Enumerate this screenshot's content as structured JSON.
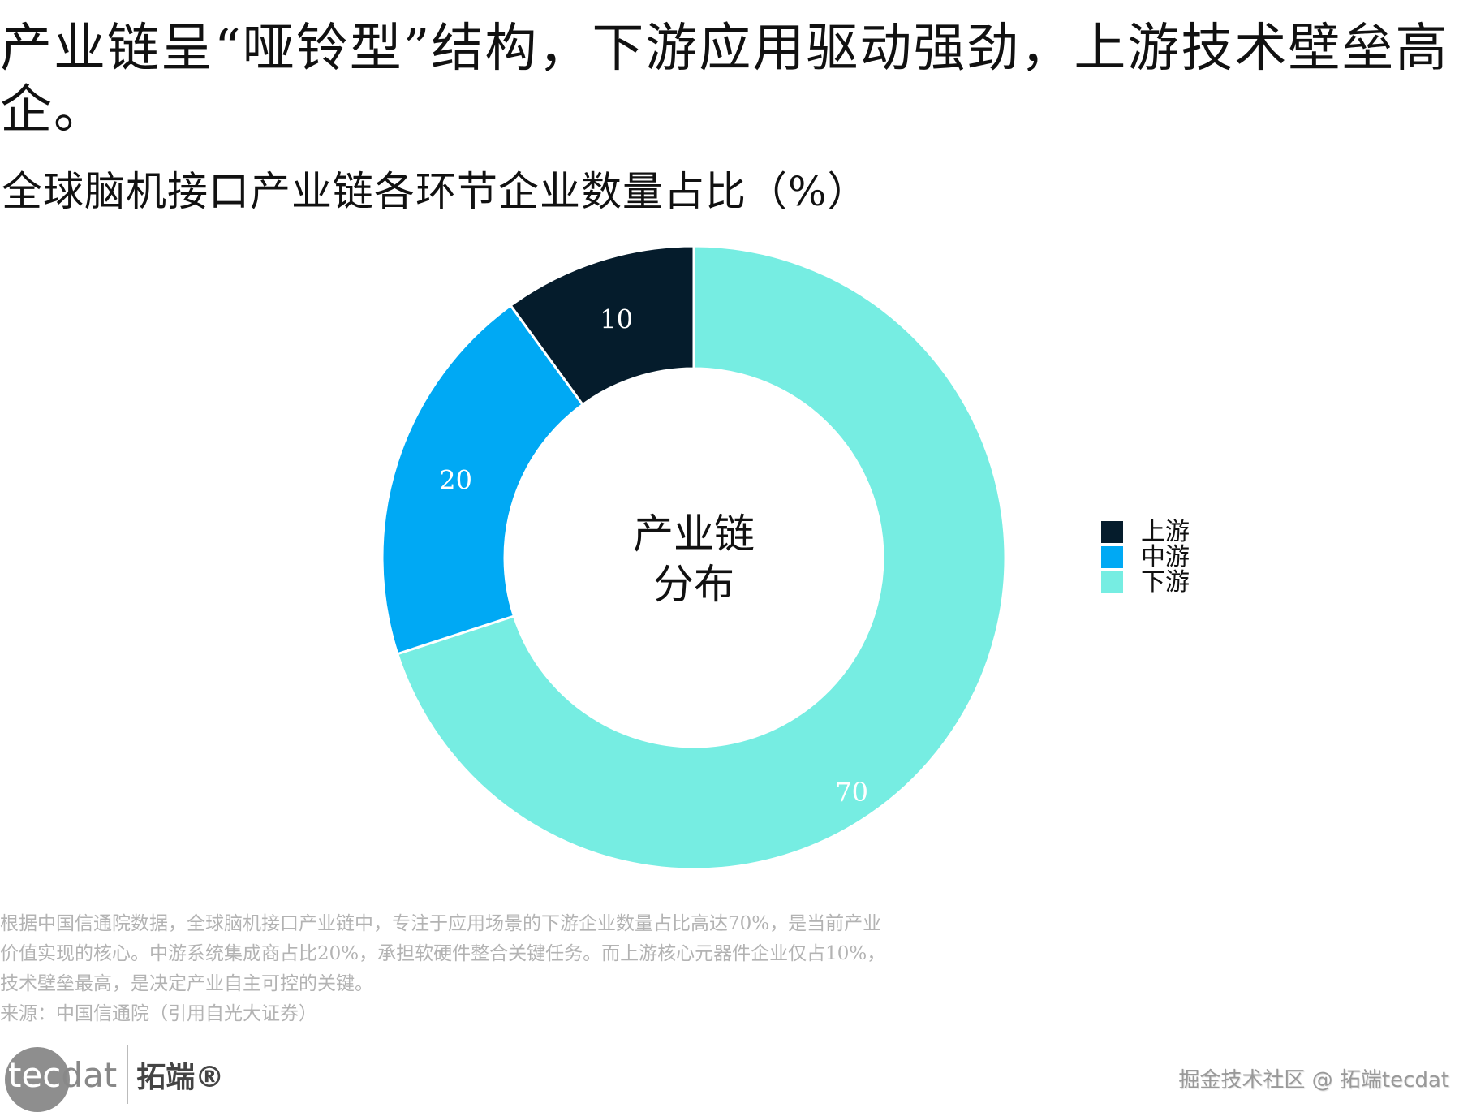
{
  "title": "产业链呈“哑铃型”结构，下游应用驱动强劲，上游技术壁垒高企。",
  "subtitle": "全球脑机接口产业链各环节企业数量占比（%）",
  "chart_data": {
    "type": "pie",
    "variant": "donut",
    "title": "全球脑机接口产业链各环节企业数量占比（%）",
    "center_label": [
      "产业链",
      "分布"
    ],
    "categories": [
      "上游",
      "中游",
      "下游"
    ],
    "values": [
      10,
      20,
      70
    ],
    "colors": [
      "#051c2c",
      "#00a9f4",
      "#76ede2"
    ],
    "label_colors": [
      "#ffffff",
      "#ffffff",
      "#ffffff"
    ],
    "slice_order_clockwise_from_top": [
      "下游",
      "中游",
      "上游"
    ],
    "legend_position": "right"
  },
  "note": {
    "lines": [
      "根据中国信通院数据，全球脑机接口产业链中，专注于应用场景的下游企业数量占比高达70%，是当前产业",
      "价值实现的核心。中游系统集成商占比20%，承担软硬件整合关键任务。而上游核心元器件企业仅占10%，",
      "技术壁垒最高，是决定产业自主可控的关键。",
      "来源：中国信通院（引用自光大证券）"
    ]
  },
  "logo": {
    "latin_a": "tec",
    "latin_b": "dat",
    "cn": "拓端®"
  },
  "watermark": "掘金技术社区 @ 拓端tecdat"
}
